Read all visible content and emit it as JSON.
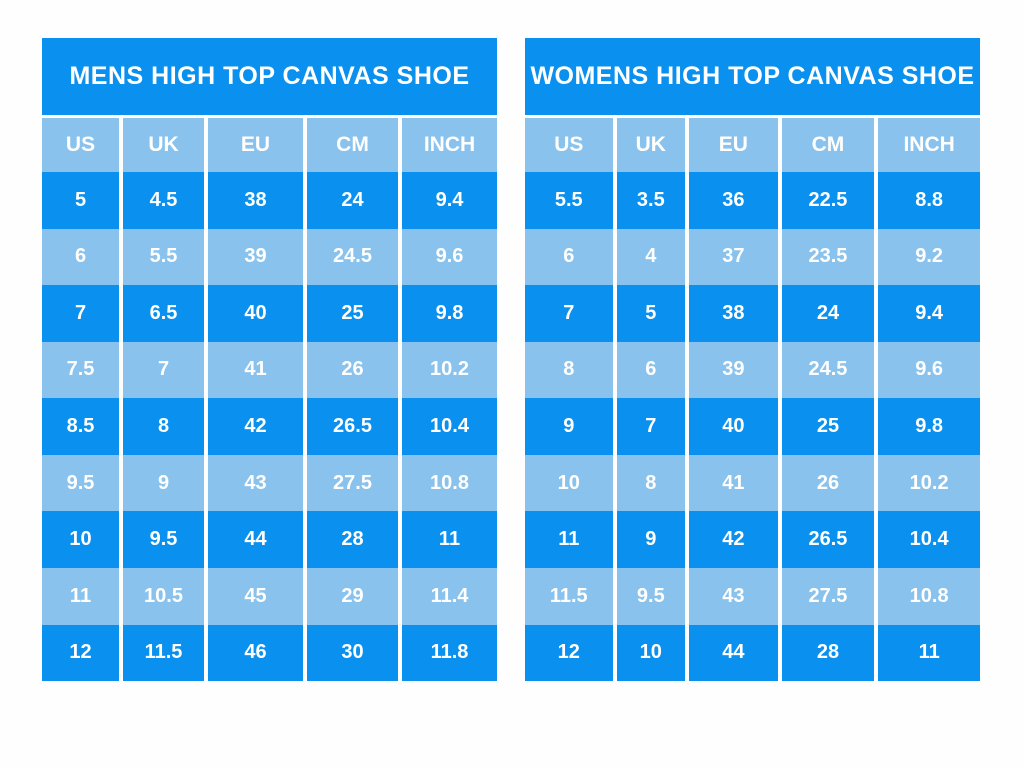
{
  "colors": {
    "bright_blue": "#0a90ee",
    "light_blue": "#89c2ec",
    "separator_white": "#ffffff",
    "text_white": "#ffffff",
    "page_background": "#fefefe"
  },
  "chart_data": [
    {
      "type": "table",
      "title": "MENS HIGH TOP CANVAS SHOE",
      "columns": [
        "US",
        "UK",
        "EU",
        "CM",
        "INCH"
      ],
      "rows": [
        [
          "5",
          "4.5",
          "38",
          "24",
          "9.4"
        ],
        [
          "6",
          "5.5",
          "39",
          "24.5",
          "9.6"
        ],
        [
          "7",
          "6.5",
          "40",
          "25",
          "9.8"
        ],
        [
          "7.5",
          "7",
          "41",
          "26",
          "10.2"
        ],
        [
          "8.5",
          "8",
          "42",
          "26.5",
          "10.4"
        ],
        [
          "9.5",
          "9",
          "43",
          "27.5",
          "10.8"
        ],
        [
          "10",
          "9.5",
          "44",
          "28",
          "11"
        ],
        [
          "11",
          "10.5",
          "45",
          "29",
          "11.4"
        ],
        [
          "12",
          "11.5",
          "46",
          "30",
          "11.8"
        ]
      ]
    },
    {
      "type": "table",
      "title": "WOMENS HIGH TOP CANVAS SHOE",
      "columns": [
        "US",
        "UK",
        "EU",
        "CM",
        "INCH"
      ],
      "rows": [
        [
          "5.5",
          "3.5",
          "36",
          "22.5",
          "8.8"
        ],
        [
          "6",
          "4",
          "37",
          "23.5",
          "9.2"
        ],
        [
          "7",
          "5",
          "38",
          "24",
          "9.4"
        ],
        [
          "8",
          "6",
          "39",
          "24.5",
          "9.6"
        ],
        [
          "9",
          "7",
          "40",
          "25",
          "9.8"
        ],
        [
          "10",
          "8",
          "41",
          "26",
          "10.2"
        ],
        [
          "11",
          "9",
          "42",
          "26.5",
          "10.4"
        ],
        [
          "11.5",
          "9.5",
          "43",
          "27.5",
          "10.8"
        ],
        [
          "12",
          "10",
          "44",
          "28",
          "11"
        ]
      ]
    }
  ]
}
